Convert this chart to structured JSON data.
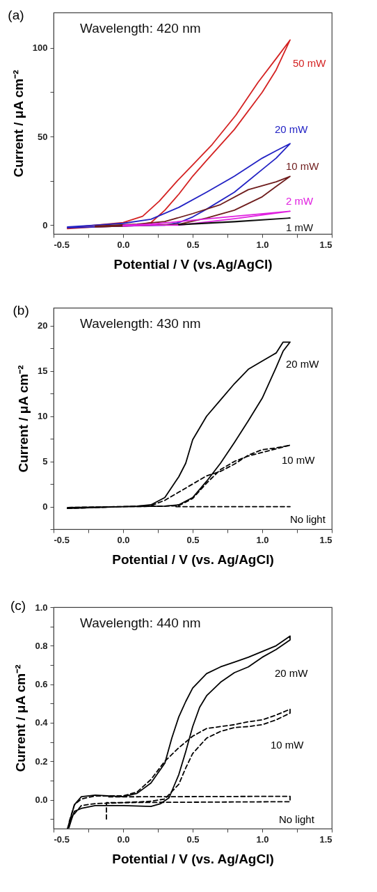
{
  "chart_data": [
    {
      "type": "line",
      "title": "(a)",
      "annotations": [
        "Wavelength: 420 nm"
      ],
      "xlabel": "Potential / V (vs.Ag/AgCl)",
      "ylabel": "Current / μA cm⁻²",
      "xlim": [
        -0.5,
        1.5
      ],
      "ylim": [
        -5,
        120
      ],
      "xticks": [
        -0.5,
        {
          "value": -0.25,
          "label": null
        },
        {
          "value": 0,
          "label": "0.0"
        },
        {
          "value": 0.25,
          "label": null
        },
        0.5,
        {
          "value": 0.75,
          "label": null
        },
        {
          "value": 1,
          "label": "1.0"
        },
        {
          "value": 1.25,
          "label": null
        },
        1.5
      ],
      "yticks": [
        0,
        {
          "value": 25,
          "label": null
        },
        50,
        {
          "value": 75,
          "label": null
        },
        100
      ],
      "series": [
        {
          "name": "50 mW",
          "color": "#d42222",
          "x": [
            -0.4,
            -0.2,
            0,
            0.1,
            0.2,
            0.3,
            0.4,
            0.5,
            0.6,
            0.8,
            1.0,
            1.1,
            1.2,
            1.1,
            0.97,
            0.81,
            0.64,
            0.5,
            0.39,
            0.26,
            0.14,
            0,
            -0.2,
            -0.4
          ],
          "values": [
            -2,
            -1,
            -0.5,
            0,
            1.4,
            8.4,
            17.4,
            27.6,
            36.5,
            54,
            75,
            87.6,
            104.5,
            94,
            80.6,
            62,
            45.5,
            34,
            25,
            13.5,
            5,
            1.4,
            0,
            -1.5
          ]
        },
        {
          "name": "20 mW",
          "color": "#2222c4",
          "x": [
            -0.4,
            -0.2,
            0,
            0.3,
            0.4,
            0.5,
            0.6,
            0.8,
            1.0,
            1.1,
            1.2,
            1.1,
            1.0,
            0.8,
            0.6,
            0.4,
            0.2,
            0,
            -0.2,
            -0.4
          ],
          "values": [
            -1.5,
            -1,
            -0.5,
            0,
            1.4,
            4.6,
            9,
            18.6,
            31.4,
            37.8,
            46,
            42,
            37.8,
            27.6,
            18.6,
            10,
            3.3,
            1,
            0,
            -1
          ]
        },
        {
          "name": "10 mW",
          "color": "#6e1c1c",
          "x": [
            -0.2,
            0,
            0.2,
            0.4,
            0.6,
            0.8,
            1.0,
            1.1,
            1.2,
            1.1,
            0.9,
            0.7,
            0.5,
            0.3,
            0.1,
            -0.2
          ],
          "values": [
            -1,
            -0.5,
            0,
            0.5,
            4,
            8.4,
            16,
            21.8,
            27.5,
            24.4,
            20,
            11.6,
            6.5,
            2,
            0.5,
            -0.5
          ]
        },
        {
          "name": "2 mW",
          "color": "#e020e0",
          "x": [
            0,
            0.2,
            0.4,
            0.8,
            1.2,
            0.8,
            0.4,
            0.2,
            0
          ],
          "values": [
            -0.5,
            0,
            0,
            3.6,
            7.8,
            5,
            2,
            0.5,
            0
          ]
        },
        {
          "name": "1 mW",
          "color": "#111111",
          "x": [
            0.4,
            0.8,
            1.2,
            0.8,
            0.4
          ],
          "values": [
            0.2,
            1.8,
            4,
            2,
            0.3
          ]
        }
      ]
    },
    {
      "type": "line",
      "title": "(b)",
      "annotations": [
        "Wavelength: 430 nm"
      ],
      "xlabel": "Potential / V (vs. Ag/AgCl)",
      "ylabel": "Current / μA cm⁻²",
      "xlim": [
        -0.5,
        1.5
      ],
      "ylim": [
        -2.5,
        22
      ],
      "xticks": [
        -0.5,
        {
          "value": -0.25,
          "label": null
        },
        {
          "value": 0,
          "label": "0.0"
        },
        {
          "value": 0.25,
          "label": null
        },
        0.5,
        {
          "value": 0.75,
          "label": null
        },
        {
          "value": 1,
          "label": "1.0"
        },
        {
          "value": 1.25,
          "label": null
        },
        1.5
      ],
      "yticks": [
        {
          "value": -2.5,
          "label": null
        },
        0,
        {
          "value": 2.5,
          "label": null
        },
        5,
        {
          "value": 7.5,
          "label": null
        },
        10,
        {
          "value": 12.5,
          "label": null
        },
        15,
        {
          "value": 17.5,
          "label": null
        },
        20
      ],
      "series": [
        {
          "name": "20 mW",
          "color": "#000000",
          "line_style": "solid",
          "x": [
            -0.4,
            -0.2,
            0,
            0.3,
            0.4,
            0.5,
            0.6,
            0.7,
            0.8,
            0.9,
            1.0,
            1.1,
            1.15,
            1.2,
            1.15,
            1.1,
            1.0,
            0.9,
            0.8,
            0.7,
            0.6,
            0.5,
            0.45,
            0.4,
            0.3,
            0.2,
            0.1,
            0,
            -0.4
          ],
          "values": [
            -0.2,
            -0.1,
            0,
            0.05,
            0.2,
            1,
            2.8,
            4.8,
            7.1,
            9.5,
            12,
            15.4,
            17.2,
            18.2,
            18.2,
            17,
            16.1,
            15.2,
            13.6,
            11.8,
            10,
            7.4,
            4.8,
            3.3,
            1,
            0.2,
            0.05,
            0,
            -0.1
          ]
        },
        {
          "name": "10 mW",
          "color": "#000000",
          "line_style": "dashed",
          "x": [
            -0.4,
            0,
            0.3,
            0.4,
            0.5,
            0.6,
            0.7,
            0.8,
            0.9,
            1.0,
            1.1,
            1.2,
            1.1,
            1.0,
            0.9,
            0.8,
            0.7,
            0.6,
            0.5,
            0.4,
            0.3,
            0.2,
            0,
            -0.4
          ],
          "values": [
            -0.2,
            0,
            0.05,
            0.1,
            0.9,
            2.6,
            4.1,
            5,
            5.6,
            6,
            6.4,
            6.8,
            6.5,
            6.3,
            5.7,
            4.7,
            3.9,
            3.4,
            2.5,
            1.6,
            0.7,
            0.1,
            0,
            -0.1
          ]
        },
        {
          "name": "No light",
          "color": "#000000",
          "line_style": "dashed",
          "x": [
            0.38,
            0.8,
            1.2
          ],
          "values": [
            0,
            0,
            0
          ]
        }
      ]
    },
    {
      "type": "line",
      "title": "(c)",
      "annotations": [
        "Wavelength: 440 nm"
      ],
      "xlabel": "Potential / V (vs. Ag/AgCl)",
      "ylabel": "Current / μA cm⁻²",
      "xlim": [
        -0.5,
        1.5
      ],
      "ylim": [
        -0.15,
        1.0
      ],
      "xticks": [
        -0.5,
        {
          "value": -0.25,
          "label": null
        },
        {
          "value": 0,
          "label": "0.0"
        },
        {
          "value": 0.25,
          "label": null
        },
        0.5,
        {
          "value": 0.75,
          "label": null
        },
        {
          "value": 1,
          "label": "1.0"
        },
        {
          "value": 1.25,
          "label": null
        },
        1.5
      ],
      "yticks": [
        {
          "value": -0.1,
          "label": null
        },
        {
          "value": 0,
          "label": "0.0"
        },
        {
          "value": 0.1,
          "label": null
        },
        0.2,
        {
          "value": 0.3,
          "label": null
        },
        0.4,
        {
          "value": 0.5,
          "label": null
        },
        0.6,
        {
          "value": 0.7,
          "label": null
        },
        0.8,
        {
          "value": 0.9,
          "label": null
        },
        {
          "value": 1,
          "label": "1.0"
        }
      ],
      "series": [
        {
          "name": "20 mW",
          "color": "#000000",
          "line_style": "solid",
          "x": [
            -0.39,
            -0.37,
            -0.35,
            -0.3,
            -0.2,
            0,
            0.2,
            0.27,
            0.33,
            0.4,
            0.45,
            0.5,
            0.55,
            0.6,
            0.7,
            0.8,
            0.9,
            1.0,
            1.1,
            1.2,
            1.2,
            1.1,
            1.0,
            0.9,
            0.8,
            0.7,
            0.6,
            0.5,
            0.45,
            0.4,
            0.35,
            0.3,
            0.2,
            0.1,
            0,
            -0.2,
            -0.3,
            -0.35,
            -0.38,
            -0.4
          ],
          "values": [
            -0.146,
            -0.1,
            -0.06,
            -0.045,
            -0.03,
            -0.03,
            -0.035,
            -0.02,
            0.01,
            0.13,
            0.25,
            0.38,
            0.48,
            0.54,
            0.61,
            0.66,
            0.69,
            0.74,
            0.78,
            0.83,
            0.85,
            0.8,
            0.77,
            0.74,
            0.715,
            0.69,
            0.655,
            0.58,
            0.51,
            0.43,
            0.32,
            0.19,
            0.087,
            0.033,
            0.016,
            0.024,
            0.016,
            -0.026,
            -0.1,
            -0.15
          ]
        },
        {
          "name": "10 mW",
          "color": "#000000",
          "line_style": "dashed",
          "x": [
            -0.39,
            -0.37,
            -0.3,
            -0.2,
            0,
            0.2,
            0.3,
            0.4,
            0.45,
            0.5,
            0.6,
            0.7,
            0.8,
            0.9,
            1.0,
            1.1,
            1.2,
            1.2,
            1.1,
            1.0,
            0.9,
            0.8,
            0.7,
            0.6,
            0.5,
            0.4,
            0.3,
            0.2,
            0.1,
            0,
            -0.2,
            -0.3,
            -0.35,
            -0.39
          ],
          "values": [
            -0.14,
            -0.09,
            -0.03,
            -0.02,
            -0.015,
            -0.008,
            0.004,
            0.08,
            0.165,
            0.24,
            0.32,
            0.355,
            0.375,
            0.38,
            0.39,
            0.415,
            0.45,
            0.47,
            0.44,
            0.415,
            0.405,
            0.39,
            0.38,
            0.37,
            0.33,
            0.27,
            0.2,
            0.105,
            0.04,
            0.02,
            0.02,
            0.004,
            -0.026,
            -0.12
          ]
        },
        {
          "name": "No light",
          "color": "#000000",
          "line_style": "dashed",
          "x": [
            -0.12,
            -0.12,
            1.2,
            1.2,
            -0.12
          ],
          "values": [
            -0.1,
            -0.015,
            -0.01,
            0.018,
            0.015
          ]
        }
      ]
    }
  ]
}
